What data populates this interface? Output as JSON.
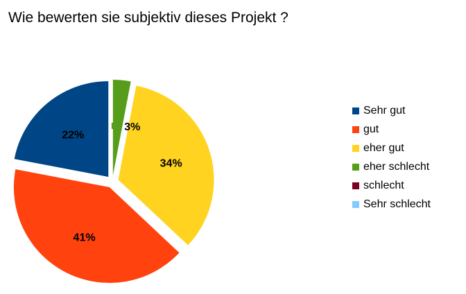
{
  "chart_data": {
    "type": "pie",
    "title": "Wie bewerten sie subjektiv dieses Projekt ?",
    "categories": [
      "Sehr gut",
      "gut",
      "eher gut",
      "eher schlecht",
      "schlecht",
      "Sehr schlecht"
    ],
    "values": [
      22,
      41,
      34,
      3,
      0,
      0
    ],
    "value_labels": [
      "22%",
      "41%",
      "34%",
      "3%",
      "",
      ""
    ],
    "colors": [
      "#004586",
      "#ff420e",
      "#ffd320",
      "#579d1c",
      "#7e0021",
      "#83caff"
    ],
    "exploded": true,
    "legend_position": "right"
  }
}
